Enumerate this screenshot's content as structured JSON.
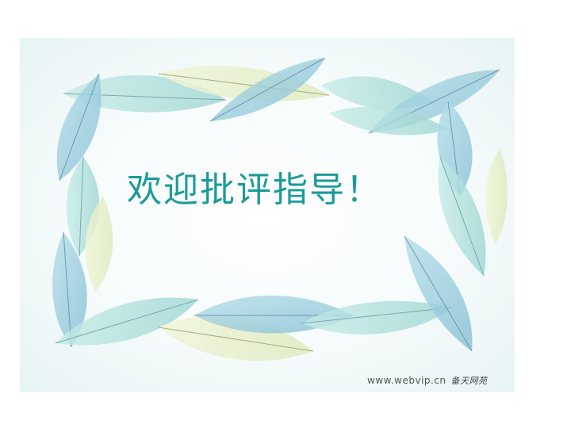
{
  "slide": {
    "title": "欢迎批评指导！",
    "watermark_url": "www.webvip.cn",
    "watermark_sig": "备天网苑"
  },
  "colors": {
    "title": "#1a9b98",
    "leaf_blue": "#8fc6d8",
    "leaf_teal": "#a9d9d6",
    "leaf_yellow": "#e4ecc0"
  }
}
